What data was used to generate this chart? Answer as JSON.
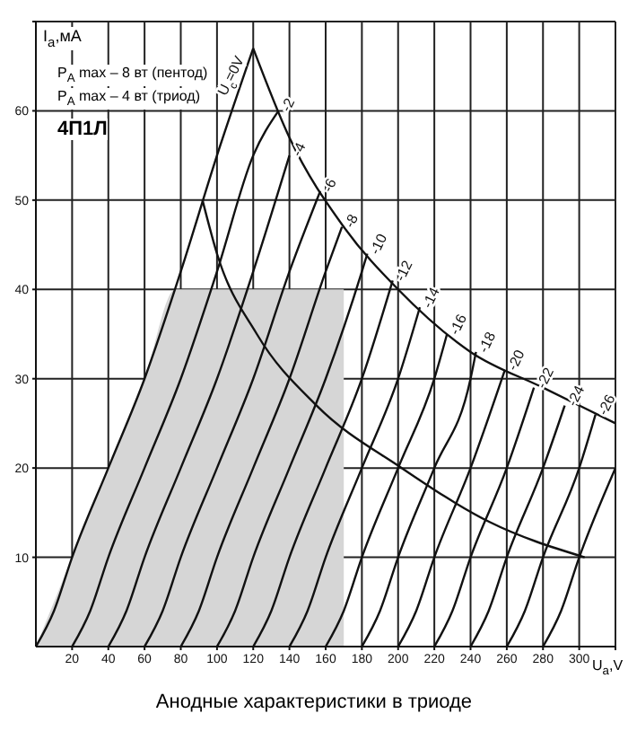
{
  "chart_data": {
    "type": "line",
    "title": "Анодные характеристики в триоде",
    "xlabel": "U$_{a}$,V",
    "ylabel": "I$_{a}$,мА",
    "annotations": [
      "P$_{A}$ max – 8 вт (пентод)",
      "P$_{A}$ max – 4 вт (триод)",
      "4П1Л"
    ],
    "xlim": [
      0,
      320
    ],
    "ylim": [
      0,
      70
    ],
    "xticks": [
      20,
      40,
      60,
      80,
      100,
      120,
      140,
      160,
      180,
      200,
      220,
      240,
      260,
      280,
      300,
      {
        "value": 320,
        "label": null
      }
    ],
    "yticks": [
      10,
      20,
      30,
      40,
      50,
      60,
      {
        "value": 70,
        "label": null
      }
    ],
    "grid": true,
    "marker": "none",
    "line_style": "solid",
    "series": [
      {
        "type": "area",
        "color": "#d6d6d6",
        "x": [
          0,
          20,
          40,
          60,
          77,
          170
        ],
        "values": [
          0,
          10,
          20,
          30,
          40,
          40
        ]
      },
      {
        "name": "U$_{c}$=0V",
        "color": "#111111",
        "x": [
          0,
          10,
          20,
          40,
          60,
          80,
          100,
          120
        ],
        "values": [
          0,
          4,
          10,
          20,
          30,
          42,
          55,
          67
        ]
      },
      {
        "name": "-2",
        "color": "#111111",
        "x": [
          20,
          30,
          40,
          60,
          80,
          100,
          120,
          134
        ],
        "values": [
          0,
          4,
          10,
          20,
          30,
          42,
          55,
          60
        ]
      },
      {
        "name": "-4",
        "color": "#111111",
        "x": [
          40,
          50,
          60,
          80,
          100,
          120,
          140
        ],
        "values": [
          0,
          4,
          10,
          20,
          30,
          42,
          55
        ]
      },
      {
        "name": "-6",
        "color": "#111111",
        "x": [
          60,
          70,
          80,
          100,
          120,
          140,
          157
        ],
        "values": [
          0,
          4,
          10,
          20,
          30,
          42,
          51
        ]
      },
      {
        "name": "-8",
        "color": "#111111",
        "x": [
          80,
          90,
          100,
          120,
          140,
          160,
          169
        ],
        "values": [
          0,
          4,
          10,
          20,
          30,
          42,
          47
        ]
      },
      {
        "name": "-10",
        "color": "#111111",
        "x": [
          100,
          110,
          120,
          140,
          160,
          180,
          183
        ],
        "values": [
          0,
          4,
          10,
          20,
          30,
          42,
          44
        ]
      },
      {
        "name": "-12",
        "color": "#111111",
        "x": [
          120,
          130,
          140,
          160,
          180,
          197
        ],
        "values": [
          0,
          4,
          10,
          20,
          30,
          41
        ]
      },
      {
        "name": "-14",
        "color": "#111111",
        "x": [
          140,
          150,
          160,
          180,
          200,
          212
        ],
        "values": [
          0,
          4,
          10,
          20,
          30,
          38
        ]
      },
      {
        "name": "-16",
        "color": "#111111",
        "x": [
          160,
          170,
          180,
          200,
          220,
          227
        ],
        "values": [
          0,
          4,
          10,
          20,
          30,
          35
        ]
      },
      {
        "name": "-18",
        "color": "#111111",
        "x": [
          180,
          190,
          200,
          220,
          240,
          243
        ],
        "values": [
          0,
          4,
          10,
          20,
          30,
          33
        ]
      },
      {
        "name": "-20",
        "color": "#111111",
        "x": [
          200,
          210,
          220,
          240,
          259
        ],
        "values": [
          0,
          4,
          10,
          20,
          31
        ]
      },
      {
        "name": "-22",
        "color": "#111111",
        "x": [
          220,
          230,
          240,
          260,
          275
        ],
        "values": [
          0,
          4,
          10,
          20,
          29
        ]
      },
      {
        "name": "-24",
        "color": "#111111",
        "x": [
          240,
          250,
          260,
          280,
          292
        ],
        "values": [
          0,
          4,
          10,
          20,
          27
        ]
      },
      {
        "name": "-26",
        "color": "#111111",
        "x": [
          260,
          270,
          280,
          300,
          309
        ],
        "values": [
          0,
          4,
          10,
          20,
          26
        ]
      },
      {
        "color": "#111111",
        "x": [
          280,
          290,
          300,
          320
        ],
        "values": [
          0,
          4,
          10,
          20
        ]
      },
      {
        "color": "#111111",
        "x": [
          120,
          140,
          170,
          200,
          240,
          280,
          320
        ],
        "values": [
          67,
          57,
          47,
          40,
          33,
          29,
          25
        ]
      },
      {
        "color": "#111111",
        "x": [
          92,
          100,
          122,
          155,
          202,
          250,
          303
        ],
        "values": [
          50,
          44,
          35,
          27,
          20,
          14,
          10
        ]
      }
    ]
  }
}
